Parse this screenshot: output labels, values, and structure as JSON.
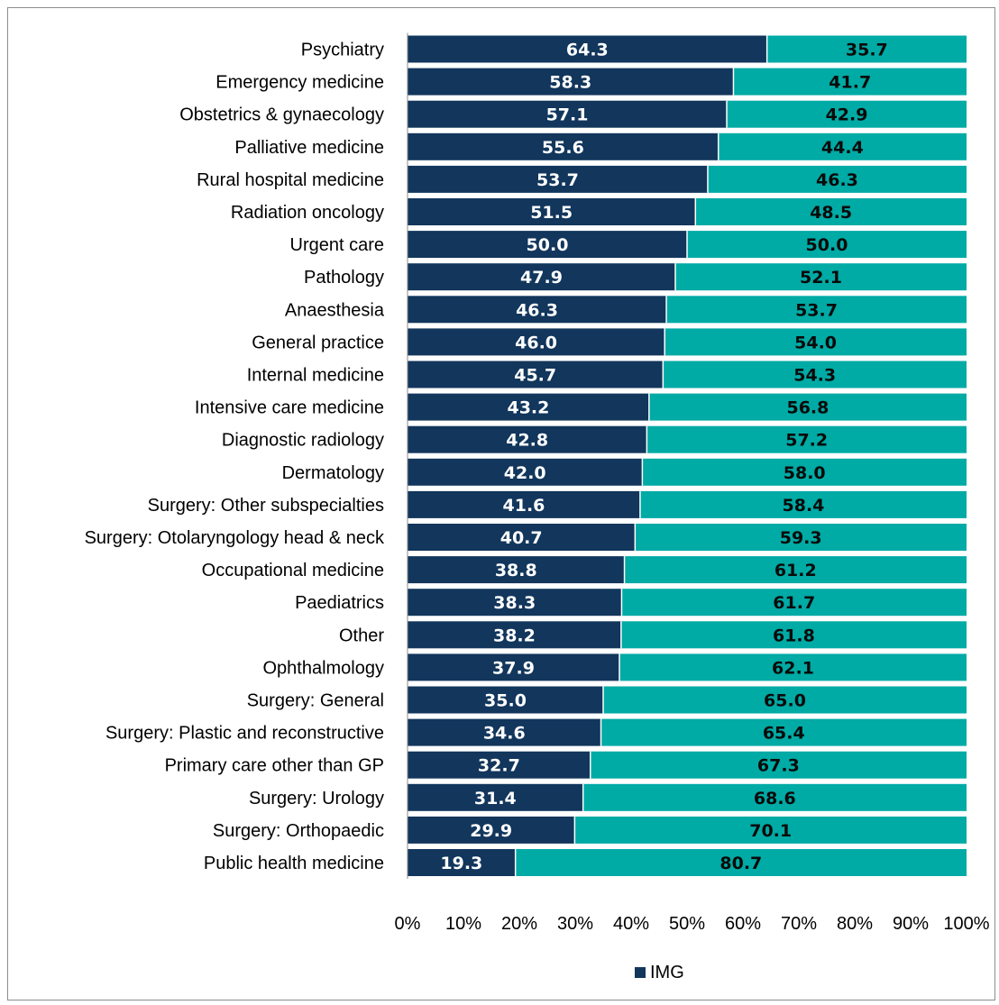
{
  "colors": {
    "img": "#12365c",
    "other": "#00aaa5",
    "img_label": "#ffffff",
    "other_label": "#0a0a0a"
  },
  "chart_data": {
    "type": "bar",
    "orientation": "horizontal",
    "stacked": "percent",
    "categories": [
      "Psychiatry",
      "Emergency medicine",
      "Obstetrics & gynaecology",
      "Palliative medicine",
      "Rural hospital medicine",
      "Radiation oncology",
      "Urgent care",
      "Pathology",
      "Anaesthesia",
      "General practice",
      "Internal medicine",
      "Intensive care medicine",
      "Diagnostic radiology",
      "Dermatology",
      "Surgery: Other subspecialties",
      "Surgery: Otolaryngology head & neck",
      "Occupational medicine",
      "Paediatrics",
      "Other",
      "Ophthalmology",
      "Surgery: General",
      "Surgery: Plastic and reconstructive",
      "Primary care other than GP",
      "Surgery: Urology",
      "Surgery: Orthopaedic",
      "Public health medicine"
    ],
    "series": [
      {
        "name": "IMG",
        "values": [
          64.3,
          58.3,
          57.1,
          55.6,
          53.7,
          51.5,
          50.0,
          47.9,
          46.3,
          46.0,
          45.7,
          43.2,
          42.8,
          42.0,
          41.6,
          40.7,
          38.8,
          38.3,
          38.2,
          37.9,
          35.0,
          34.6,
          32.7,
          31.4,
          29.9,
          19.3
        ],
        "labels": [
          "64.3",
          "58.3",
          "57.1",
          "55.6",
          "53.7",
          "51.5",
          "50.0",
          "47.9",
          "46.3",
          "46.0",
          "45.7",
          "43.2",
          "42.8",
          "42.0",
          "41.6",
          "40.7",
          "38.8",
          "38.3",
          "38.2",
          "37.9",
          "35.0",
          "34.6",
          "32.7",
          "31.4",
          "29.9",
          "19.3"
        ]
      },
      {
        "values": [
          35.7,
          41.7,
          42.9,
          44.4,
          46.3,
          48.5,
          50.0,
          52.1,
          53.7,
          54.0,
          54.3,
          56.8,
          57.2,
          58.0,
          58.4,
          59.3,
          61.2,
          61.7,
          61.8,
          62.1,
          65.0,
          65.4,
          67.3,
          68.6,
          70.1,
          80.7
        ],
        "labels": [
          "35.7",
          "41.7",
          "42.9",
          "44.4",
          "46.3",
          "48.5",
          "50.0",
          "52.1",
          "53.7",
          "54.0",
          "54.3",
          "56.8",
          "57.2",
          "58.0",
          "58.4",
          "59.3",
          "61.2",
          "61.7",
          "61.8",
          "62.1",
          "65.0",
          "65.4",
          "67.3",
          "68.6",
          "70.1",
          "80.7"
        ]
      }
    ],
    "xlim": [
      0,
      100
    ],
    "xticks": [
      0,
      10,
      20,
      30,
      40,
      50,
      60,
      70,
      80,
      90,
      100
    ],
    "xtick_labels": [
      "0%",
      "10%",
      "20%",
      "30%",
      "40%",
      "50%",
      "60%",
      "70%",
      "80%",
      "90%",
      "100%"
    ],
    "grid": false,
    "legend": {
      "placement": "bottom-center",
      "entries": [
        "IMG"
      ]
    }
  }
}
